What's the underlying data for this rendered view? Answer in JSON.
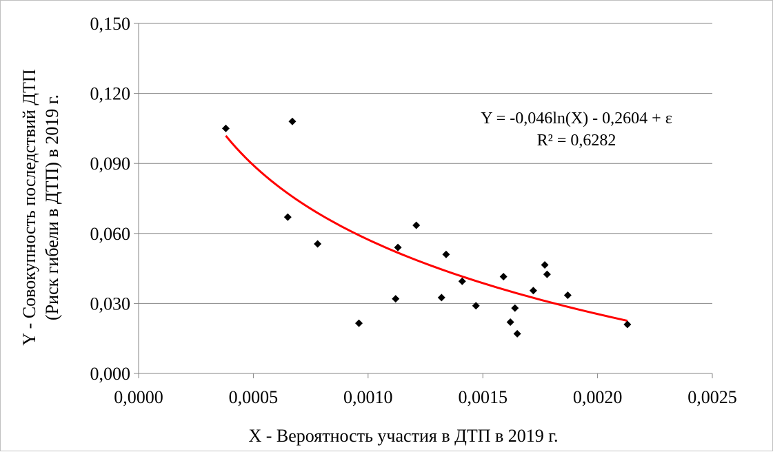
{
  "chart_data": {
    "type": "scatter",
    "title": "",
    "xlabel": "X - Вероятность участия в ДТП в 2019  г.",
    "ylabel_lines": [
      "Y - Совокупность последствий ДТП",
      "(Риск гибели в ДТП) в 2019  г."
    ],
    "xlim": [
      0,
      0.0025
    ],
    "ylim": [
      0,
      0.15
    ],
    "x_ticks": [
      0,
      0.0005,
      0.001,
      0.0015,
      0.002,
      0.0025
    ],
    "x_tick_labels": [
      "0,0000",
      "0,0005",
      "0,0010",
      "0,0015",
      "0,0020",
      "0,0025"
    ],
    "y_ticks": [
      0,
      0.03,
      0.06,
      0.09,
      0.12,
      0.15
    ],
    "y_tick_labels": [
      "0,000",
      "0,030",
      "0,060",
      "0,090",
      "0,120",
      "0,150"
    ],
    "grid": "horizontal",
    "series": [
      {
        "marker": "diamond",
        "color": "#000000",
        "points": [
          [
            0.00038,
            0.105
          ],
          [
            0.00067,
            0.108
          ],
          [
            0.00065,
            0.067
          ],
          [
            0.00078,
            0.0555
          ],
          [
            0.00096,
            0.0215
          ],
          [
            0.00112,
            0.032
          ],
          [
            0.00113,
            0.054
          ],
          [
            0.00121,
            0.0635
          ],
          [
            0.00132,
            0.0325
          ],
          [
            0.00134,
            0.051
          ],
          [
            0.00141,
            0.0395
          ],
          [
            0.00147,
            0.029
          ],
          [
            0.00159,
            0.0415
          ],
          [
            0.00162,
            0.022
          ],
          [
            0.00164,
            0.028
          ],
          [
            0.00165,
            0.017
          ],
          [
            0.00172,
            0.0355
          ],
          [
            0.00177,
            0.0465
          ],
          [
            0.00178,
            0.0425
          ],
          [
            0.00187,
            0.0335
          ],
          [
            0.00213,
            0.021
          ]
        ]
      }
    ],
    "trendline": {
      "type": "logarithmic",
      "a": -0.046,
      "b": -0.2604,
      "x_range": [
        0.00038,
        0.00213
      ],
      "color": "#ff0000"
    },
    "annotations": {
      "equation": "Y = -0,046ln(X)  - 0,2604  + ε",
      "r2": "R² = 0,6282"
    }
  }
}
